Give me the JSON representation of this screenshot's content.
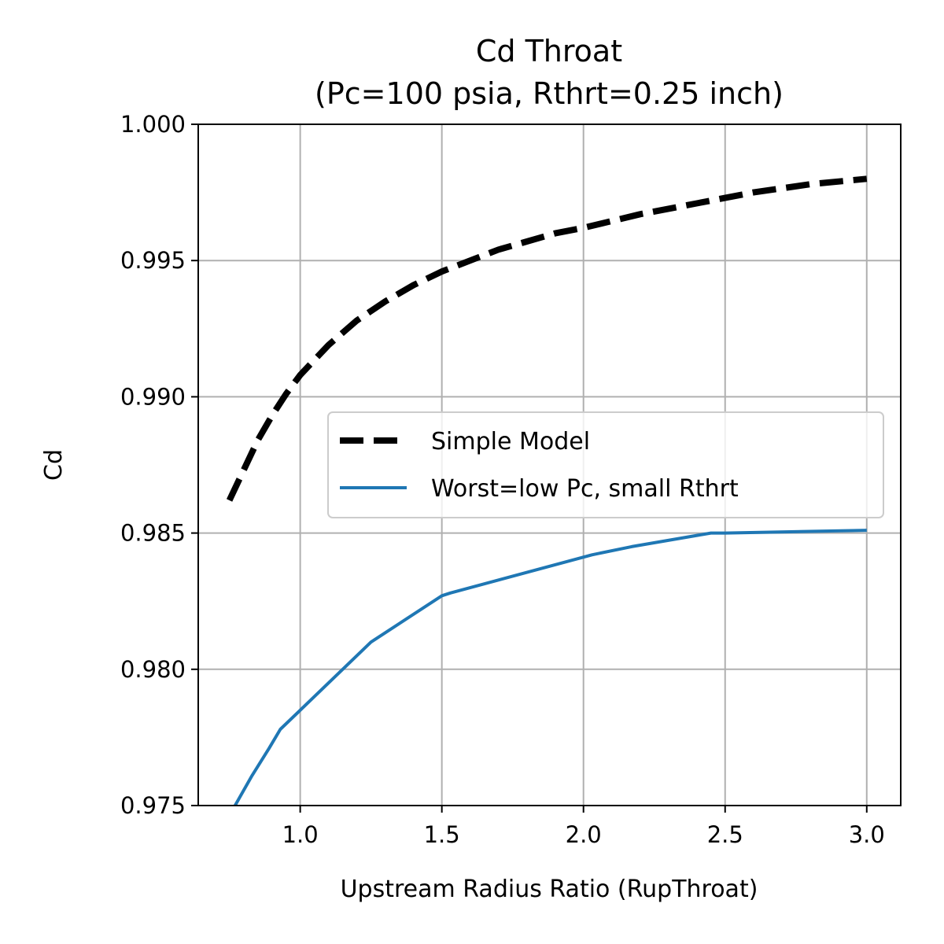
{
  "chart_data": {
    "type": "line",
    "title": "Cd Throat",
    "subtitle": "(Pc=100 psia, Rthrt=0.25 inch)",
    "xlabel": "Upstream Radius Ratio (RupThroat)",
    "ylabel": "Cd",
    "xlim": [
      0.64,
      3.12
    ],
    "ylim": [
      0.975,
      1.0
    ],
    "xticks": [
      1.0,
      1.5,
      2.0,
      2.5,
      3.0
    ],
    "xtick_labels": [
      "1.0",
      "1.5",
      "2.0",
      "2.5",
      "3.0"
    ],
    "yticks": [
      0.975,
      0.98,
      0.985,
      0.99,
      0.995,
      1.0
    ],
    "ytick_labels": [
      "0.975",
      "0.980",
      "0.985",
      "0.990",
      "0.995",
      "1.000"
    ],
    "grid": true,
    "legend_position": "center-right",
    "series": [
      {
        "name": "Simple Model",
        "color": "#000000",
        "style": "dashed",
        "x": [
          0.75,
          0.8,
          0.85,
          0.9,
          0.95,
          1.0,
          1.1,
          1.2,
          1.3,
          1.4,
          1.5,
          1.6,
          1.7,
          1.8,
          1.9,
          2.0,
          2.2,
          2.4,
          2.6,
          2.8,
          3.0
        ],
        "y": [
          0.9862,
          0.9873,
          0.9884,
          0.9893,
          0.9901,
          0.9908,
          0.9919,
          0.9928,
          0.9935,
          0.9941,
          0.9946,
          0.995,
          0.9954,
          0.9957,
          0.996,
          0.9962,
          0.9967,
          0.9971,
          0.9975,
          0.9978,
          0.998
        ]
      },
      {
        "name": "Worst=low Pc, small Rthrt",
        "color": "#1f77b4",
        "style": "solid",
        "x": [
          0.77,
          0.83,
          0.89,
          0.93,
          1.0,
          1.25,
          1.5,
          1.53,
          2.03,
          2.17,
          2.45,
          2.5,
          3.0
        ],
        "y": [
          0.975,
          0.9761,
          0.9771,
          0.9778,
          0.9785,
          0.981,
          0.9827,
          0.9828,
          0.9842,
          0.9845,
          0.985,
          0.985,
          0.9851
        ]
      }
    ]
  }
}
